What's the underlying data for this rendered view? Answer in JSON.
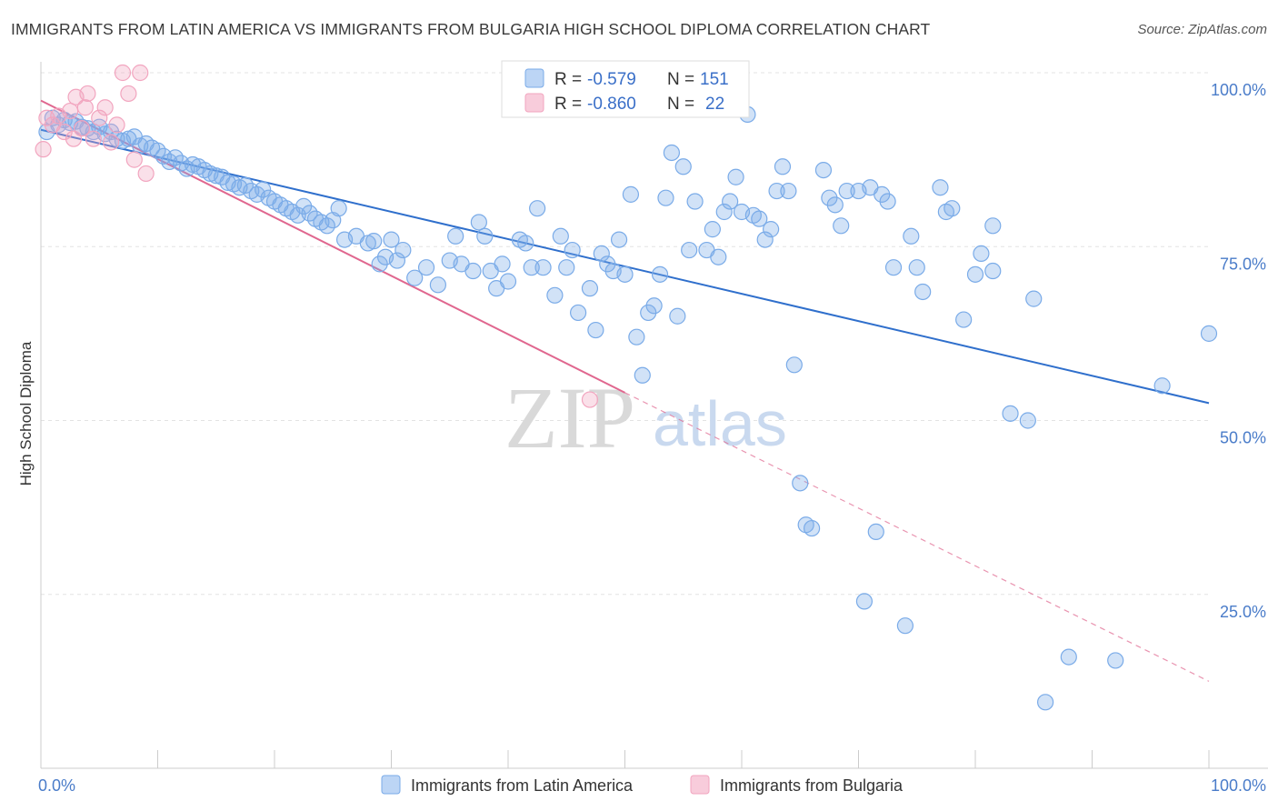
{
  "title": "IMMIGRANTS FROM LATIN AMERICA VS IMMIGRANTS FROM BULGARIA HIGH SCHOOL DIPLOMA CORRELATION CHART",
  "source": "Source: ZipAtlas.com",
  "watermark": {
    "zip": "ZIP",
    "atlas": "atlas"
  },
  "chart_data": {
    "type": "scatter",
    "ylabel": "High School Diploma",
    "xlim": [
      0,
      100
    ],
    "ylim": [
      0,
      100
    ],
    "x_ticks": [
      {
        "value": 0,
        "label": "0.0%"
      },
      {
        "value": 100,
        "label": "100.0%"
      }
    ],
    "y_ticks": [
      {
        "value": 25,
        "label": "25.0%"
      },
      {
        "value": 50,
        "label": "50.0%"
      },
      {
        "value": 75,
        "label": "75.0%"
      },
      {
        "value": 100,
        "label": "100.0%"
      }
    ],
    "grid": "horizontal-dashed",
    "legend_top": [
      {
        "r_label": "R = ",
        "r_value": "-0.579",
        "n_label": "N = ",
        "n_value": "151",
        "color": "#7aabe8"
      },
      {
        "r_label": "R = ",
        "r_value": "-0.860",
        "n_label": "N = ",
        "n_value": "22",
        "color": "#f2a5bf"
      }
    ],
    "series": [
      {
        "name": "Immigrants from Latin America",
        "color": "#7aabe8",
        "line_color": "#2f6fcc",
        "trend": {
          "x0": 0,
          "y0": 91.8,
          "x1": 100,
          "y1": 52.5
        },
        "points": [
          [
            0.5,
            91.5
          ],
          [
            1.0,
            93.5
          ],
          [
            1.5,
            92.5
          ],
          [
            2.0,
            93.2
          ],
          [
            2.5,
            92.8
          ],
          [
            3.0,
            93.0
          ],
          [
            3.5,
            92.2
          ],
          [
            4.0,
            92.0
          ],
          [
            4.5,
            91.5
          ],
          [
            5.0,
            92.2
          ],
          [
            5.5,
            91.2
          ],
          [
            6.0,
            91.5
          ],
          [
            6.5,
            90.5
          ],
          [
            7.0,
            90.2
          ],
          [
            7.5,
            90.5
          ],
          [
            8.0,
            90.8
          ],
          [
            8.5,
            89.5
          ],
          [
            9.0,
            89.8
          ],
          [
            9.5,
            89.2
          ],
          [
            10.0,
            88.8
          ],
          [
            10.5,
            88.0
          ],
          [
            11.0,
            87.2
          ],
          [
            11.5,
            87.8
          ],
          [
            12.0,
            87.0
          ],
          [
            12.5,
            86.2
          ],
          [
            13.0,
            86.8
          ],
          [
            13.5,
            86.5
          ],
          [
            14.0,
            86.0
          ],
          [
            14.5,
            85.5
          ],
          [
            15.0,
            85.2
          ],
          [
            15.5,
            85.0
          ],
          [
            16.0,
            84.2
          ],
          [
            16.5,
            84.0
          ],
          [
            17.0,
            83.5
          ],
          [
            17.5,
            83.8
          ],
          [
            18.0,
            83.0
          ],
          [
            18.5,
            82.5
          ],
          [
            19.0,
            83.2
          ],
          [
            19.5,
            82.0
          ],
          [
            20.0,
            81.5
          ],
          [
            20.5,
            81.0
          ],
          [
            21.0,
            80.5
          ],
          [
            21.5,
            80.0
          ],
          [
            22.0,
            79.5
          ],
          [
            22.5,
            80.8
          ],
          [
            23.0,
            79.8
          ],
          [
            23.5,
            79.0
          ],
          [
            24.0,
            78.5
          ],
          [
            24.5,
            78.0
          ],
          [
            25.0,
            78.8
          ],
          [
            25.5,
            80.5
          ],
          [
            26.0,
            76.0
          ],
          [
            27.0,
            76.5
          ],
          [
            28.0,
            75.5
          ],
          [
            28.5,
            75.8
          ],
          [
            29.0,
            72.5
          ],
          [
            29.5,
            73.5
          ],
          [
            30.0,
            76.0
          ],
          [
            30.5,
            73.0
          ],
          [
            31.0,
            74.5
          ],
          [
            32.0,
            70.5
          ],
          [
            33.0,
            72.0
          ],
          [
            34.0,
            69.5
          ],
          [
            35.0,
            73.0
          ],
          [
            35.5,
            76.5
          ],
          [
            36.0,
            72.5
          ],
          [
            37.0,
            71.5
          ],
          [
            37.5,
            78.5
          ],
          [
            38.0,
            76.5
          ],
          [
            38.5,
            71.5
          ],
          [
            39.0,
            69.0
          ],
          [
            39.5,
            72.5
          ],
          [
            40.0,
            70.0
          ],
          [
            41.0,
            76.0
          ],
          [
            41.5,
            75.5
          ],
          [
            42.0,
            72.0
          ],
          [
            42.5,
            80.5
          ],
          [
            43.0,
            72.0
          ],
          [
            44.0,
            68.0
          ],
          [
            44.5,
            76.5
          ],
          [
            45.0,
            72.0
          ],
          [
            45.5,
            74.5
          ],
          [
            46.0,
            65.5
          ],
          [
            47.0,
            69.0
          ],
          [
            47.5,
            63.0
          ],
          [
            48.0,
            74.0
          ],
          [
            48.5,
            72.5
          ],
          [
            49.0,
            71.5
          ],
          [
            49.5,
            76.0
          ],
          [
            50.0,
            71.0
          ],
          [
            50.5,
            82.5
          ],
          [
            51.0,
            62.0
          ],
          [
            51.5,
            56.5
          ],
          [
            52.0,
            65.5
          ],
          [
            52.5,
            66.5
          ],
          [
            53.0,
            71.0
          ],
          [
            53.5,
            82.0
          ],
          [
            54.0,
            88.5
          ],
          [
            54.5,
            65.0
          ],
          [
            55.0,
            86.5
          ],
          [
            55.5,
            74.5
          ],
          [
            56.0,
            81.5
          ],
          [
            57.0,
            74.5
          ],
          [
            57.5,
            77.5
          ],
          [
            58.0,
            73.5
          ],
          [
            58.5,
            80.0
          ],
          [
            59.0,
            81.5
          ],
          [
            59.5,
            85.0
          ],
          [
            60.0,
            80.0
          ],
          [
            60.5,
            94.0
          ],
          [
            61.0,
            79.5
          ],
          [
            61.5,
            79.0
          ],
          [
            62.0,
            76.0
          ],
          [
            62.5,
            77.5
          ],
          [
            63.0,
            83.0
          ],
          [
            63.5,
            86.5
          ],
          [
            64.0,
            83.0
          ],
          [
            64.5,
            58.0
          ],
          [
            65.0,
            41.0
          ],
          [
            65.5,
            35.0
          ],
          [
            66.0,
            34.5
          ],
          [
            67.0,
            86.0
          ],
          [
            67.5,
            82.0
          ],
          [
            68.0,
            81.0
          ],
          [
            68.5,
            78.0
          ],
          [
            69.0,
            83.0
          ],
          [
            70.0,
            83.0
          ],
          [
            70.5,
            24.0
          ],
          [
            71.0,
            83.5
          ],
          [
            71.5,
            34.0
          ],
          [
            72.0,
            82.5
          ],
          [
            72.5,
            81.5
          ],
          [
            73.0,
            72.0
          ],
          [
            74.0,
            20.5
          ],
          [
            74.5,
            76.5
          ],
          [
            75.0,
            72.0
          ],
          [
            75.5,
            68.5
          ],
          [
            77.0,
            83.5
          ],
          [
            77.5,
            80.0
          ],
          [
            78.0,
            80.5
          ],
          [
            79.0,
            64.5
          ],
          [
            80.0,
            71.0
          ],
          [
            80.5,
            74.0
          ],
          [
            81.5,
            71.5
          ],
          [
            81.5,
            78.0
          ],
          [
            83.0,
            51.0
          ],
          [
            84.5,
            50.0
          ],
          [
            85.0,
            67.5
          ],
          [
            86.0,
            9.5
          ],
          [
            88.0,
            16.0
          ],
          [
            92.0,
            15.5
          ],
          [
            96.0,
            55.0
          ],
          [
            100.0,
            62.5
          ]
        ]
      },
      {
        "name": "Immigrants from Bulgaria",
        "color": "#f2a5bf",
        "line_color": "#e0678f",
        "trend": {
          "x0": 0,
          "y0": 96.0,
          "x1": 50,
          "y1": 54.0
        },
        "trend_extension": {
          "x0": 50,
          "y0": 54.0,
          "x1": 100,
          "y1": 12.5
        },
        "points": [
          [
            0.5,
            93.5
          ],
          [
            1.0,
            92.5
          ],
          [
            1.5,
            93.8
          ],
          [
            2.0,
            91.5
          ],
          [
            2.5,
            94.5
          ],
          [
            2.8,
            90.5
          ],
          [
            3.0,
            96.5
          ],
          [
            3.5,
            92.0
          ],
          [
            3.8,
            95.0
          ],
          [
            4.0,
            97.0
          ],
          [
            4.5,
            90.5
          ],
          [
            5.5,
            95.0
          ],
          [
            5.0,
            93.5
          ],
          [
            6.0,
            90.0
          ],
          [
            6.5,
            92.5
          ],
          [
            7.0,
            100.0
          ],
          [
            7.5,
            97.0
          ],
          [
            8.0,
            87.5
          ],
          [
            8.5,
            100.0
          ],
          [
            9.0,
            85.5
          ],
          [
            0.2,
            89.0
          ],
          [
            47.0,
            53.0
          ]
        ]
      }
    ]
  }
}
